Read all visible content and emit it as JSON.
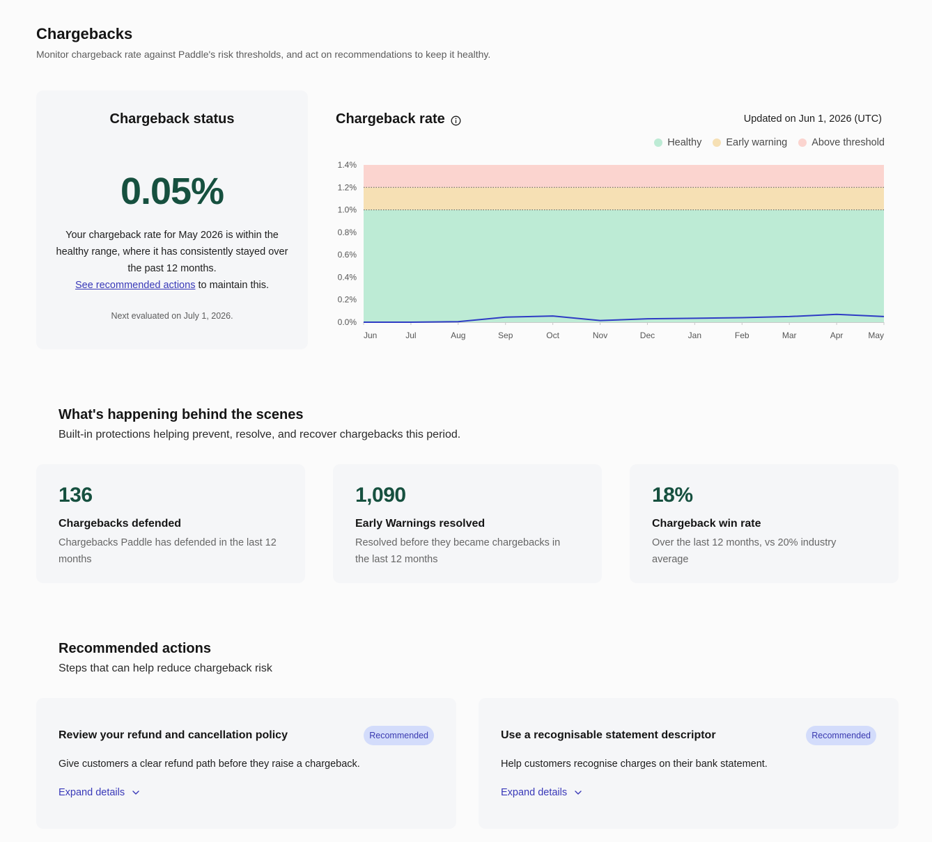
{
  "page": {
    "title": "Chargebacks",
    "subtitle": "Monitor chargeback rate against Paddle's risk thresholds, and act on recommendations to keep it healthy."
  },
  "status": {
    "title": "Chargeback status",
    "value": "0.05%",
    "text_before": "Your chargeback rate for May 2026 is within the healthy range, where it has consistently stayed over the past 12 months.",
    "link": "See recommended actions",
    "text_after": " to maintain this.",
    "next": "Next evaluated on July 1, 2026."
  },
  "chart_header": {
    "title": "Chargeback rate",
    "info_icon": "info-circle-icon",
    "updated": "Updated on Jun 1, 2026 (UTC)"
  },
  "colors": {
    "healthy": "#bdebd5",
    "early_warning": "#f6e0b4",
    "above_threshold": "#fbd4cf",
    "line": "#2e3bc4",
    "accent": "#16503f",
    "link": "#3838b8"
  },
  "chart_data": {
    "type": "line",
    "categories": [
      "Jun",
      "Jul",
      "Aug",
      "Sep",
      "Oct",
      "Nov",
      "Dec",
      "Jan",
      "Feb",
      "Mar",
      "Apr",
      "May"
    ],
    "series": [
      {
        "values": [
          0.0,
          0.0,
          0.005,
          0.045,
          0.055,
          0.015,
          0.03,
          0.035,
          0.04,
          0.05,
          0.07,
          0.05
        ]
      }
    ],
    "ylim": [
      0,
      1.4
    ],
    "yticks": [
      "0.0%",
      "0.2%",
      "0.4%",
      "0.6%",
      "0.8%",
      "1.0%",
      "1.2%",
      "1.4%"
    ],
    "bands": [
      {
        "name": "Healthy",
        "from": 0,
        "to": 1.0
      },
      {
        "name": "Early warning",
        "from": 1.0,
        "to": 1.2
      },
      {
        "name": "Above threshold",
        "from": 1.2,
        "to": 1.4
      }
    ],
    "legend_position": "top-right",
    "grid": false
  },
  "legend": {
    "healthy": "Healthy",
    "early_warning": "Early warning",
    "above_threshold": "Above threshold"
  },
  "scenes": {
    "title": "What's happening behind the scenes",
    "subtitle": "Built-in protections helping prevent, resolve, and recover chargebacks this period.",
    "stats": [
      {
        "value": "136",
        "label": "Chargebacks defended",
        "desc": "Chargebacks Paddle has defended in the last 12 months"
      },
      {
        "value": "1,090",
        "label": "Early Warnings resolved",
        "desc": "Resolved before they became chargebacks in the last 12 months"
      },
      {
        "value": "18%",
        "label": "Chargeback win rate",
        "desc": "Over the last 12 months, vs 20% industry average"
      }
    ]
  },
  "actions": {
    "title": "Recommended actions",
    "subtitle": "Steps that can help reduce chargeback risk",
    "items": [
      {
        "title": "Review your refund and cancellation policy",
        "badge": "Recommended",
        "desc": "Give customers a clear refund path before they raise a chargeback.",
        "expand": "Expand details",
        "icon": "chevron-down-icon"
      },
      {
        "title": "Use a recognisable statement descriptor",
        "badge": "Recommended",
        "desc": "Help customers recognise charges on their bank statement.",
        "expand": "Expand details",
        "icon": "chevron-down-icon"
      }
    ]
  }
}
